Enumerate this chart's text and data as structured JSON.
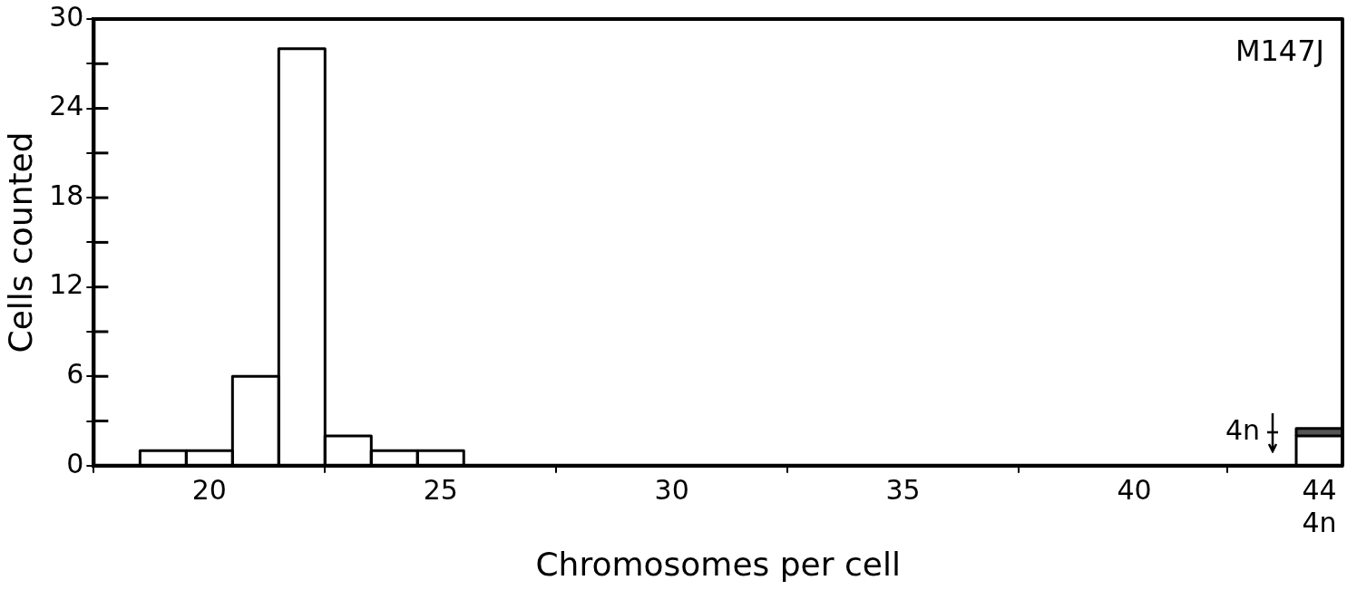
{
  "chart_data": {
    "type": "bar",
    "xlabel": "Chromosomes per cell",
    "ylabel": "Cells counted",
    "x": [
      19,
      20,
      21,
      22,
      23,
      24,
      25,
      26,
      27,
      28,
      29,
      30,
      31,
      32,
      33,
      34,
      35,
      36,
      37,
      38,
      39,
      40,
      41,
      42,
      43,
      44
    ],
    "stacked": true,
    "series": [
      {
        "color": "#ffffff",
        "values": [
          1,
          1,
          6,
          28,
          2,
          1,
          1,
          0,
          0,
          0,
          0,
          0,
          0,
          0,
          0,
          0,
          0,
          0,
          0,
          0,
          0,
          0,
          0,
          0,
          0,
          2
        ]
      },
      {
        "name": "4n",
        "color": "#555555",
        "values": [
          null,
          null,
          null,
          null,
          null,
          null,
          null,
          null,
          null,
          null,
          null,
          null,
          null,
          null,
          null,
          null,
          null,
          null,
          null,
          null,
          null,
          null,
          null,
          null,
          null,
          0.5
        ]
      }
    ],
    "xlim": [
      17.5,
      44.5
    ],
    "xticks": [
      20,
      25,
      30,
      35,
      40,
      {
        "value": 44,
        "label": "44\n4n"
      }
    ],
    "ylim": [
      0,
      30
    ],
    "yticks": [
      0,
      {
        "value": 3,
        "label": null
      },
      6,
      {
        "value": 9,
        "label": null
      },
      12,
      {
        "value": 15,
        "label": null
      },
      18,
      {
        "value": 21,
        "label": null
      },
      24,
      {
        "value": 27,
        "label": null
      },
      30
    ],
    "annotations": [
      "M147J"
    ],
    "grid": false,
    "legend": "bottom right"
  }
}
